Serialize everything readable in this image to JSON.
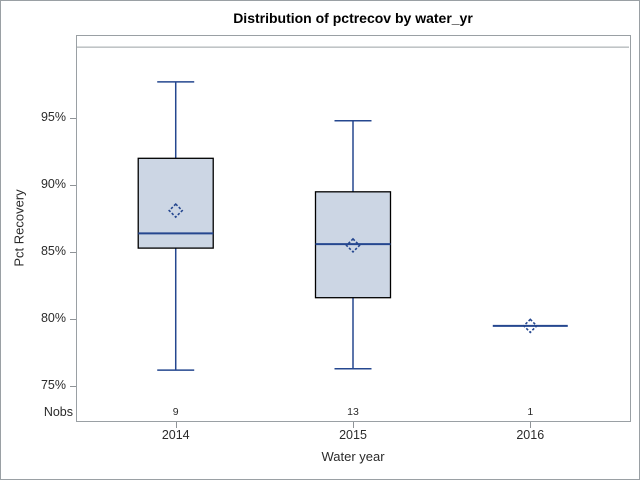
{
  "title": "Distribution of pctrecov by water_yr",
  "y_axis": {
    "label": "Pct Recovery",
    "tick_labels": [
      "75%",
      "80%",
      "85%",
      "90%",
      "95%"
    ]
  },
  "x_axis": {
    "label": "Water year",
    "categories": [
      "2014",
      "2015",
      "2016"
    ]
  },
  "nobs": {
    "label": "Nobs",
    "values": [
      "9",
      "13",
      "1"
    ]
  },
  "chart_data": {
    "type": "boxplot",
    "title": "Distribution of pctrecov by water_yr",
    "xlabel": "Water year",
    "ylabel": "Pct Recovery",
    "categories": [
      "2014",
      "2015",
      "2016"
    ],
    "ylim": [
      72.4,
      101.2
    ],
    "yticks": [
      75,
      80,
      85,
      90,
      95
    ],
    "ytick_labels": [
      "75%",
      "80%",
      "85%",
      "90%",
      "95%"
    ],
    "reference_line_y": 100.3,
    "grid": false,
    "legend": "none",
    "series": [
      {
        "category": "2014",
        "n": 9,
        "whisker_low": 76.2,
        "q1": 85.3,
        "median": 86.4,
        "q3": 92.0,
        "whisker_high": 97.7,
        "mean": 88.1
      },
      {
        "category": "2015",
        "n": 13,
        "whisker_low": 76.3,
        "q1": 81.6,
        "median": 85.6,
        "q3": 89.5,
        "whisker_high": 94.8,
        "mean": 85.5
      },
      {
        "category": "2016",
        "n": 1,
        "whisker_low": 79.5,
        "q1": 79.5,
        "median": 79.5,
        "q3": 79.5,
        "whisker_high": 79.5,
        "mean": 79.5
      }
    ]
  },
  "colors": {
    "background": "#ffffff",
    "frame_gray": "#9aa0a4",
    "tick_gray": "#8f9397",
    "box_fill": "#ccd6e4",
    "box_border": "#000000",
    "line_blue": "#25478f",
    "text": "#2b2b2b",
    "title_text": "#000000"
  }
}
